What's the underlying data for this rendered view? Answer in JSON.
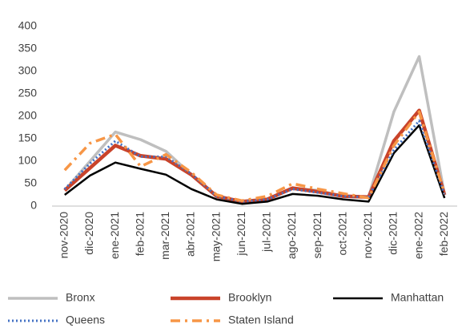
{
  "chart_data": {
    "type": "line",
    "categories": [
      "nov-2020",
      "dic-2020",
      "ene-2021",
      "feb-2021",
      "mar-2021",
      "abr-2021",
      "may-2021",
      "jun-2021",
      "jul-2021",
      "ago-2021",
      "sep-2021",
      "oct-2021",
      "nov-2021",
      "dic-2021",
      "ene-2022",
      "feb-2022"
    ],
    "series": [
      {
        "name": "Bronx",
        "color": "#bfbfbf",
        "style": "solid",
        "values": [
          35,
          100,
          165,
          148,
          122,
          70,
          22,
          10,
          15,
          40,
          35,
          22,
          20,
          210,
          333,
          25
        ]
      },
      {
        "name": "Brooklyn",
        "color": "#c9432a",
        "style": "solid",
        "values": [
          35,
          85,
          135,
          112,
          105,
          70,
          22,
          10,
          15,
          40,
          32,
          22,
          20,
          145,
          213,
          25
        ]
      },
      {
        "name": "Manhattan",
        "color": "#000000",
        "style": "solid",
        "values": [
          25,
          68,
          97,
          83,
          70,
          38,
          15,
          5,
          10,
          27,
          23,
          15,
          10,
          118,
          180,
          18
        ]
      },
      {
        "name": "Queens",
        "color": "#4472c4",
        "style": "dotted",
        "values": [
          38,
          95,
          145,
          110,
          110,
          72,
          22,
          10,
          15,
          38,
          30,
          22,
          20,
          125,
          190,
          25
        ]
      },
      {
        "name": "Staten Island",
        "color": "#f79646",
        "style": "dashdot",
        "values": [
          80,
          140,
          160,
          88,
          115,
          75,
          25,
          12,
          22,
          50,
          38,
          28,
          18,
          135,
          210,
          28
        ]
      }
    ],
    "ylim": [
      0,
      400
    ],
    "yticks": [
      0,
      50,
      100,
      150,
      200,
      250,
      300,
      350,
      400
    ],
    "grid": false
  }
}
